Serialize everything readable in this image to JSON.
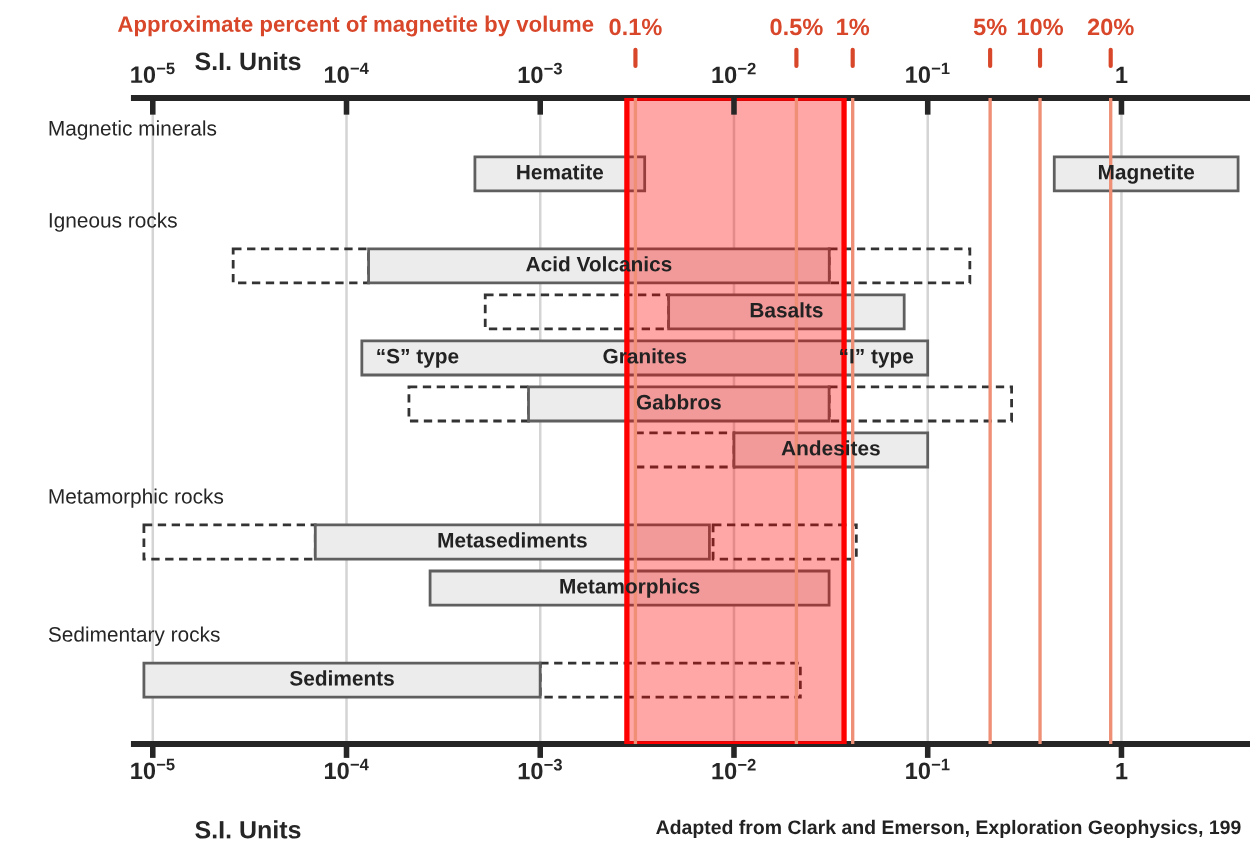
{
  "chart_data": {
    "type": "bar",
    "orientation": "horizontal",
    "log": "x",
    "grid": "x",
    "title": "Approximate percent of magnetite by volume",
    "categories": [
      "Magnetic minerals",
      "Hematite",
      "Igneous rocks",
      "Acid Volcanics",
      "Basalts",
      "Granites",
      "Gabbros",
      "Andesites",
      "Metamorphic rocks",
      "Metasediments",
      "Metamorphics",
      "Sedimentary rocks",
      "Sediments"
    ],
    "series": [
      {
        "color": "#ececec",
        "line_style": "solid",
        "values": [
          null,
          0.003,
          null,
          0.0309,
          0.071,
          0.09988,
          0.0301,
          0.09,
          null,
          0.0074,
          0.0307,
          null,
          0.00099
        ],
        "base": [
          null,
          0.00046,
          null,
          0.00013,
          0.0046,
          0.00012,
          0.00087,
          0.01,
          null,
          6.9e-05,
          0.00027,
          null,
          9e-06
        ]
      },
      {
        "name": "Magnetite",
        "color": "#ececec",
        "line_style": "solid",
        "values": [
          null,
          3.55,
          null,
          null,
          null,
          null,
          null,
          null,
          null,
          null,
          null,
          null,
          null
        ],
        "base": [
          null,
          0.45,
          null,
          null,
          null,
          null,
          null,
          null,
          null,
          null,
          null,
          null,
          null
        ]
      },
      {
        "color": "#333333",
        "line_style": "dashed",
        "values": [
          null,
          null,
          null,
          0.000104,
          0.00408,
          null,
          0.00066,
          0.0069,
          null,
          6e-05,
          null,
          null,
          null
        ],
        "base": [
          null,
          null,
          null,
          2.6e-05,
          0.00052,
          null,
          0.00021,
          0.0031,
          null,
          9e-06,
          null,
          null,
          null
        ]
      },
      {
        "color": "#333333",
        "line_style": "dashed",
        "values": [
          null,
          null,
          null,
          0.134,
          null,
          null,
          0.24,
          null,
          null,
          0.035,
          null,
          null,
          0.021
        ],
        "base": [
          null,
          null,
          null,
          0.031,
          null,
          null,
          0.031,
          null,
          null,
          0.0078,
          null,
          null,
          0.001
        ]
      }
    ],
    "xlim": [
      8e-06,
      4.5
    ],
    "xticks": [
      {
        "value": 1e-05,
        "label": "10$^{−5}$"
      },
      {
        "value": 0.0001,
        "label": "10$^{−4}$"
      },
      {
        "value": 0.001,
        "label": "10$^{−3}$"
      },
      {
        "value": 0.01,
        "label": "10$^{−2}$"
      },
      {
        "value": 0.1,
        "label": "10$^{−1}$"
      },
      {
        "value": 1,
        "label": "1"
      }
    ],
    "xlabel": "S.I. Units",
    "x2label": "S.I. Units",
    "bands": [
      {
        "axis": "x",
        "from": 0.0028,
        "to": 0.037,
        "color": "#ff0000"
      }
    ],
    "ref_lines": [
      {
        "axis": "x",
        "value": 0.0031,
        "color": "#ee8f76"
      },
      {
        "axis": "x",
        "value": 0.021,
        "color": "#ee8f76"
      },
      {
        "axis": "x",
        "value": 0.041,
        "color": "#ee8f76"
      },
      {
        "axis": "x",
        "value": 0.21,
        "color": "#ee8f76"
      },
      {
        "axis": "x",
        "value": 0.38,
        "color": "#ee8f76"
      },
      {
        "axis": "x",
        "value": 0.88,
        "color": "#ee8f76"
      }
    ],
    "annotations": [
      "0.1%",
      "0.5%",
      "1%",
      "5%",
      "10%",
      "20%",
      {
        "text": "“S” type",
        "x": 0.00012,
        "y": "Granites"
      },
      {
        "text": "“I” type",
        "x": 0.1,
        "y": "Granites"
      },
      "Adapted from Clark and Emerson, Exploration Geophysics, 199"
    ]
  }
}
